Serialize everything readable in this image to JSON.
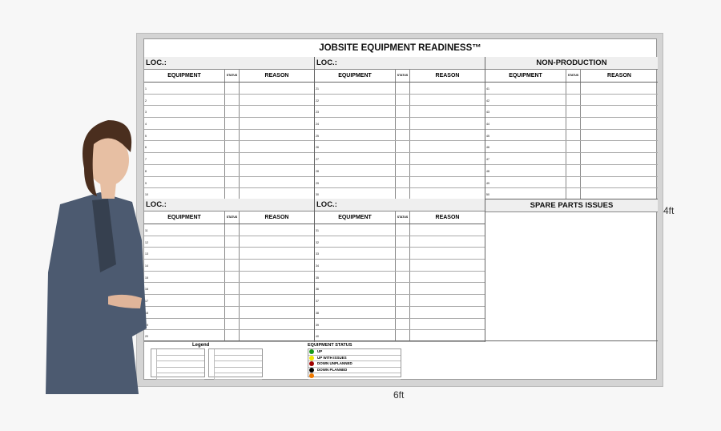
{
  "title": "JOBSITE EQUIPMENT READINESS™",
  "columns": {
    "equipment": "EQUIPMENT",
    "status": "STATUS",
    "reason": "REASON"
  },
  "sections": [
    {
      "label": "LOC.:",
      "rows": [
        "1",
        "2",
        "3",
        "4",
        "5",
        "6",
        "7",
        "8",
        "9",
        "10"
      ]
    },
    {
      "label": "LOC.:",
      "rows": [
        "21",
        "22",
        "23",
        "24",
        "25",
        "26",
        "27",
        "28",
        "29",
        "30"
      ]
    },
    {
      "label": "NON-PRODUCTION",
      "rows": [
        "41",
        "42",
        "43",
        "44",
        "45",
        "46",
        "47",
        "48",
        "49",
        "50"
      ]
    },
    {
      "label": "LOC.:",
      "rows": [
        "11",
        "12",
        "13",
        "14",
        "15",
        "16",
        "17",
        "18",
        "19",
        "20"
      ]
    },
    {
      "label": "LOC.:",
      "rows": [
        "31",
        "32",
        "33",
        "34",
        "35",
        "36",
        "37",
        "38",
        "39",
        "40"
      ]
    }
  ],
  "spare_parts": "SPARE PARTS ISSUES",
  "legend": {
    "title": "Legend"
  },
  "equipment_status": {
    "title": "EQUIPMENT STATUS",
    "items": [
      {
        "label": "UP",
        "color": "#1a9a1a"
      },
      {
        "label": "UP WITH ISSUES",
        "color": "#f2e600"
      },
      {
        "label": "DOWN UNPLANNED",
        "color": "#a00000"
      },
      {
        "label": "DOWN PLANNED",
        "color": "#000000"
      },
      {
        "label": "",
        "color": "#f07a00"
      }
    ]
  },
  "dimensions": {
    "height": "4ft",
    "width": "6ft"
  }
}
